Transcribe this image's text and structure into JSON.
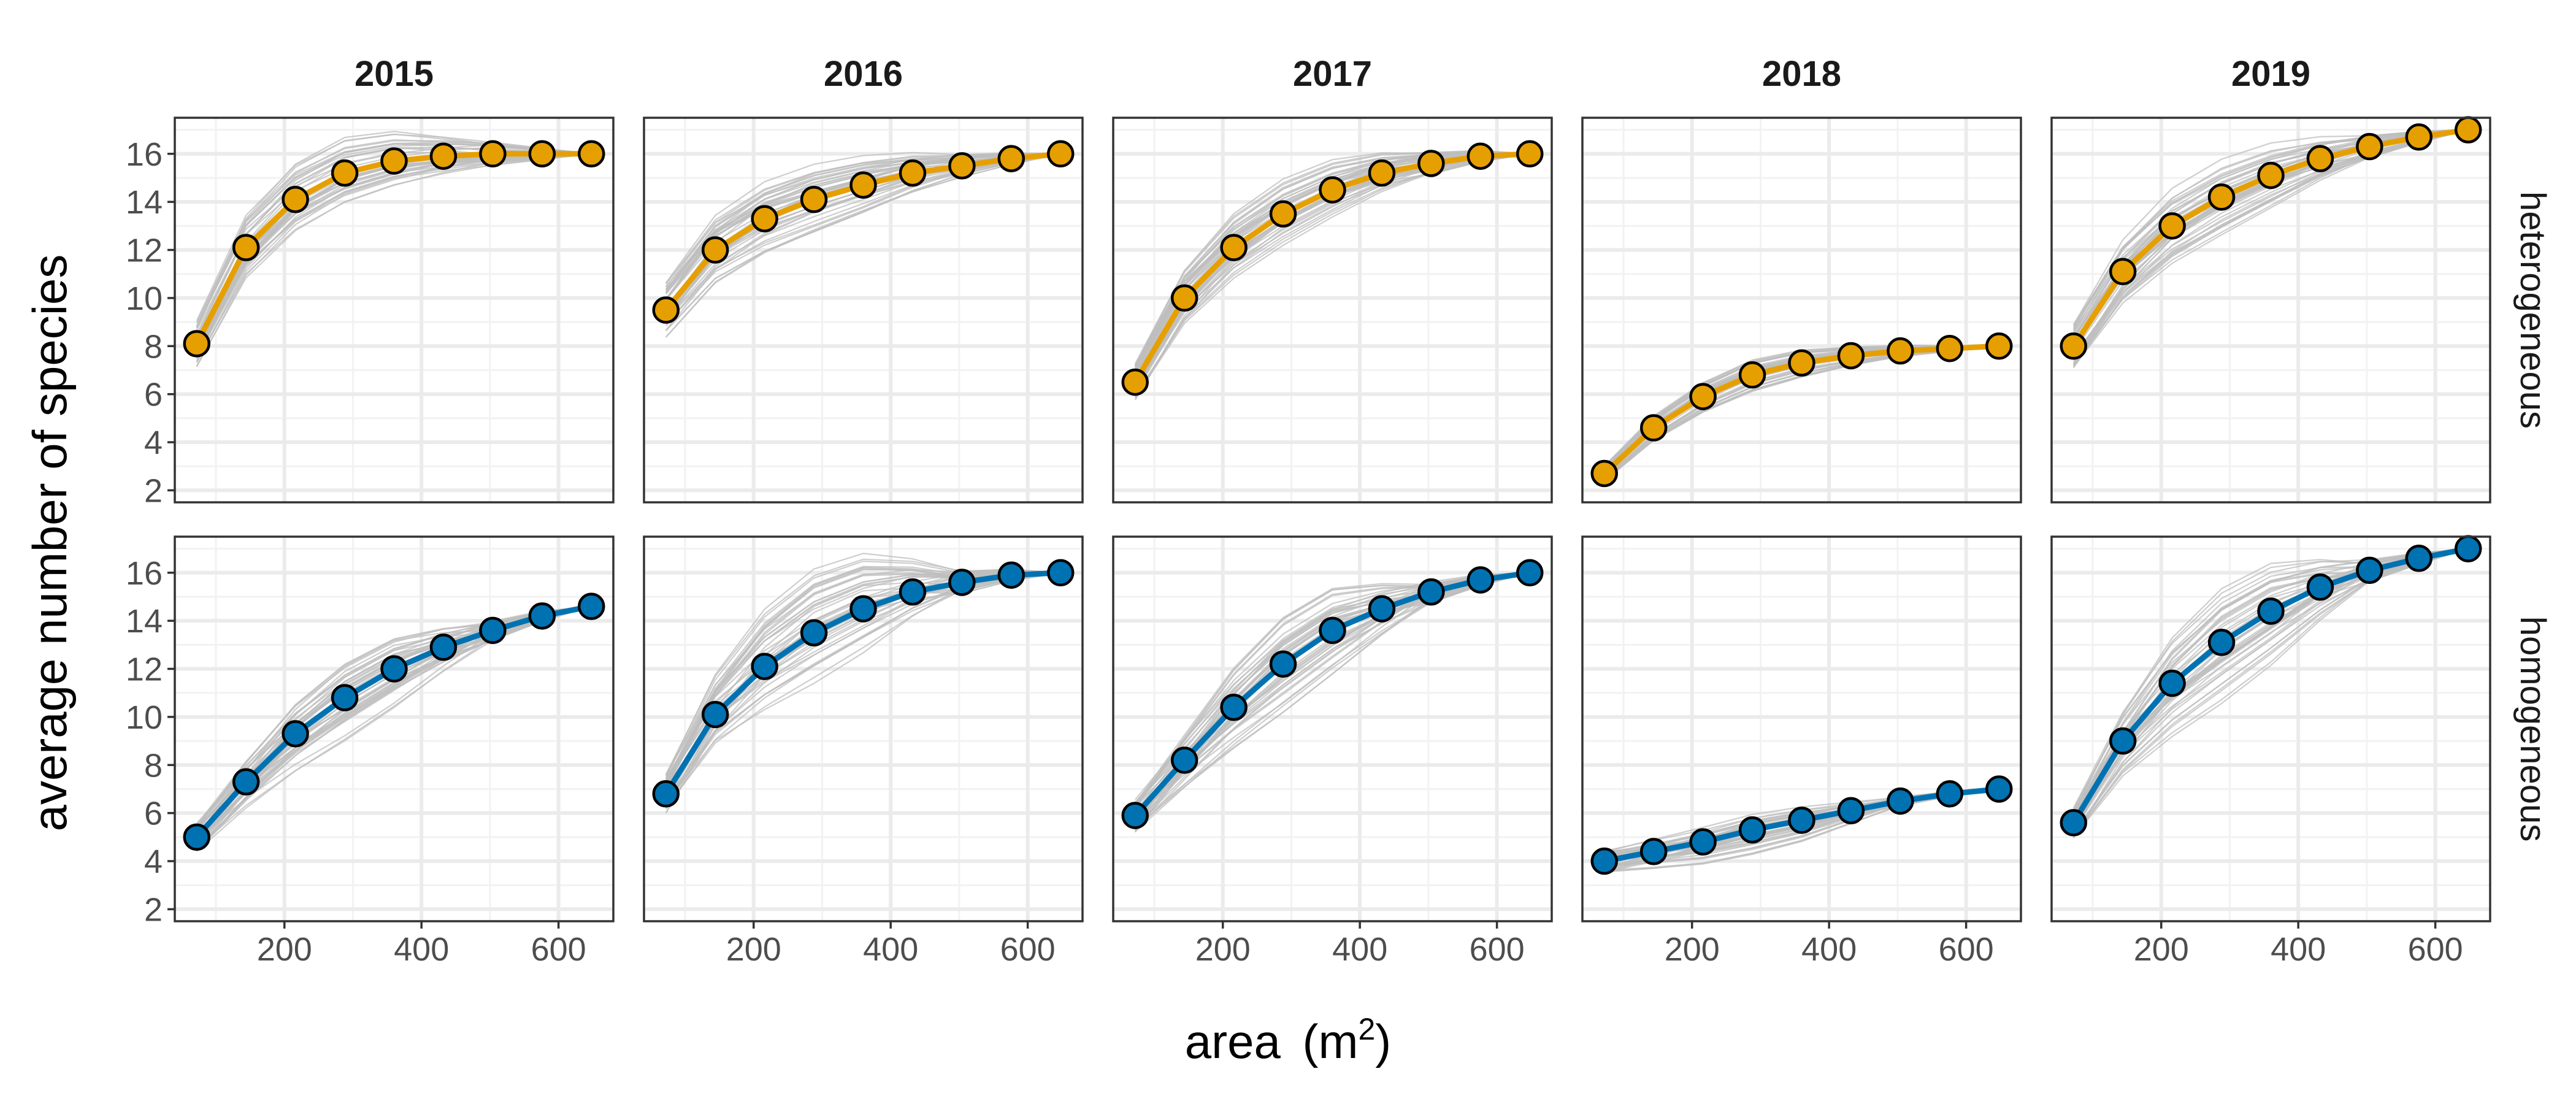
{
  "chart_data": {
    "type": "line",
    "layout": "facet grid, rows x columns",
    "columns": [
      "2015",
      "2016",
      "2017",
      "2018",
      "2019"
    ],
    "rows": [
      "heterogeneous",
      "homogeneous"
    ],
    "xlabel": "area",
    "xlabel_unit": "(m",
    "xlabel_unit_sup": "2",
    "xlabel_unit_close": ")",
    "ylabel": "average number of species",
    "xlim": [
      40,
      680
    ],
    "ylim": [
      1.5,
      17.5
    ],
    "x_ticks": [
      200,
      400,
      600
    ],
    "y_ticks": [
      2,
      4,
      6,
      8,
      10,
      12,
      14,
      16
    ],
    "grid": true,
    "x": [
      72,
      144,
      216,
      288,
      360,
      432,
      504,
      576,
      648
    ],
    "colors": {
      "heterogeneous": "#E69F00",
      "homogeneous": "#0072B2",
      "background_curves": "#bdbdbd"
    },
    "background_curves": "many grey randomized accumulation curves behind each observed series",
    "series": {
      "heterogeneous": {
        "2015": [
          8.1,
          12.1,
          14.1,
          15.2,
          15.7,
          15.9,
          16.0,
          16.0,
          16.0
        ],
        "2016": [
          9.5,
          12.0,
          13.3,
          14.1,
          14.7,
          15.2,
          15.5,
          15.8,
          16.0
        ],
        "2017": [
          6.5,
          10.0,
          12.1,
          13.5,
          14.5,
          15.2,
          15.6,
          15.9,
          16.0
        ],
        "2018": [
          2.7,
          4.6,
          5.9,
          6.8,
          7.3,
          7.6,
          7.8,
          7.9,
          8.0
        ],
        "2019": [
          8.0,
          11.1,
          13.0,
          14.2,
          15.1,
          15.8,
          16.3,
          16.7,
          17.0
        ]
      },
      "homogeneous": {
        "2015": [
          5.0,
          7.3,
          9.3,
          10.8,
          12.0,
          12.9,
          13.6,
          14.2,
          14.6
        ],
        "2016": [
          6.8,
          10.1,
          12.1,
          13.5,
          14.5,
          15.2,
          15.6,
          15.9,
          16.0
        ],
        "2017": [
          5.9,
          8.2,
          10.4,
          12.2,
          13.6,
          14.5,
          15.2,
          15.7,
          16.0
        ],
        "2018": [
          4.0,
          4.4,
          4.8,
          5.3,
          5.7,
          6.1,
          6.5,
          6.8,
          7.0
        ],
        "2019": [
          5.6,
          9.0,
          11.4,
          13.1,
          14.4,
          15.4,
          16.1,
          16.6,
          17.0
        ]
      }
    }
  }
}
